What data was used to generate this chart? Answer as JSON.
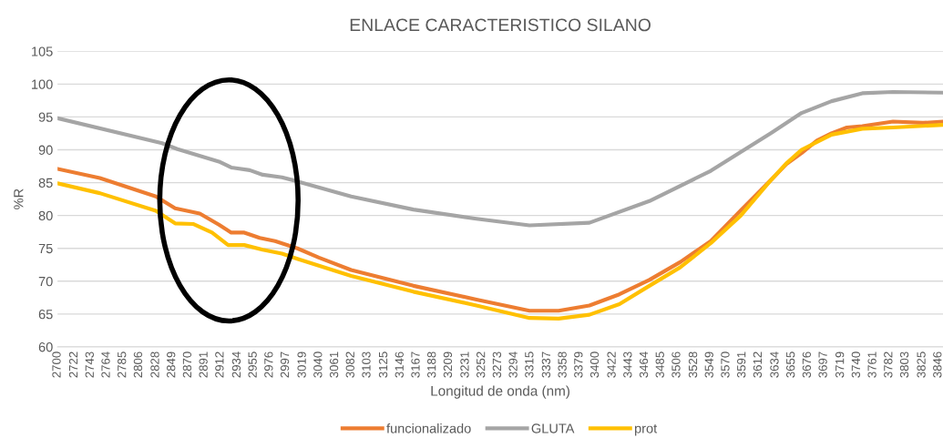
{
  "chart_data": {
    "type": "line",
    "title": "ENLACE CARACTERISTICO SILANO",
    "xlabel": "Longitud de onda (nm)",
    "ylabel": "%R",
    "xlim": [
      2700,
      3852
    ],
    "xticks": [
      2700,
      2722,
      2743,
      2764,
      2785,
      2806,
      2828,
      2849,
      2870,
      2891,
      2912,
      2934,
      2955,
      2976,
      2997,
      3019,
      3040,
      3061,
      3082,
      3103,
      3125,
      3146,
      3167,
      3188,
      3209,
      3231,
      3252,
      3273,
      3294,
      3315,
      3337,
      3358,
      3379,
      3400,
      3422,
      3443,
      3464,
      3485,
      3506,
      3528,
      3549,
      3570,
      3591,
      3612,
      3634,
      3655,
      3676,
      3697,
      3719,
      3740,
      3761,
      3782,
      3803,
      3825,
      3846
    ],
    "ylim": [
      60,
      105
    ],
    "yticks": [
      60,
      65,
      70,
      75,
      80,
      85,
      90,
      95,
      100,
      105
    ],
    "grid": "y",
    "legend": "bottom",
    "marker": "none",
    "line_style": "solid",
    "series": [
      {
        "name": "funcionalizado",
        "color": "#ed7d31",
        "x": [
          2700,
          2755,
          2828,
          2853,
          2885,
          2910,
          2926,
          2943,
          2963,
          2983,
          3012,
          3040,
          3082,
          3163,
          3245,
          3314,
          3352,
          3392,
          3431,
          3470,
          3510,
          3550,
          3589,
          3629,
          3648,
          3668,
          3688,
          3707,
          3727,
          3747,
          3787,
          3826,
          3852
        ],
        "values": [
          87.1,
          85.7,
          82.9,
          81.1,
          80.3,
          78.6,
          77.4,
          77.4,
          76.6,
          76.1,
          75.0,
          73.6,
          71.7,
          69.3,
          67.2,
          65.5,
          65.5,
          66.3,
          68.0,
          70.2,
          72.9,
          76.1,
          80.8,
          85.5,
          87.8,
          89.5,
          91.4,
          92.5,
          93.4,
          93.6,
          94.3,
          94.1,
          94.3
        ]
      },
      {
        "name": "GLUTA",
        "color": "#a5a5a5",
        "x": [
          2700,
          2836,
          2856,
          2910,
          2926,
          2950,
          2967,
          2992,
          3012,
          3082,
          3163,
          3245,
          3314,
          3392,
          3470,
          3550,
          3629,
          3668,
          3707,
          3747,
          3787,
          3852
        ],
        "values": [
          94.8,
          91.0,
          90.1,
          88.2,
          87.3,
          86.9,
          86.2,
          85.8,
          85.2,
          82.9,
          80.9,
          79.5,
          78.5,
          78.9,
          82.2,
          86.8,
          92.6,
          95.6,
          97.4,
          98.6,
          98.8,
          98.7
        ]
      },
      {
        "name": "prot",
        "color": "#ffc000",
        "x": [
          2700,
          2755,
          2828,
          2853,
          2877,
          2901,
          2922,
          2943,
          2967,
          2992,
          3012,
          3082,
          3163,
          3245,
          3314,
          3352,
          3392,
          3431,
          3470,
          3510,
          3550,
          3589,
          3629,
          3648,
          3668,
          3707,
          3747,
          3787,
          3852
        ],
        "values": [
          84.9,
          83.4,
          80.7,
          78.8,
          78.7,
          77.4,
          75.5,
          75.5,
          74.8,
          74.2,
          73.4,
          70.8,
          68.4,
          66.3,
          64.4,
          64.3,
          64.9,
          66.5,
          69.3,
          72.1,
          75.8,
          80.0,
          85.5,
          87.9,
          90.0,
          92.3,
          93.2,
          93.4,
          93.8
        ]
      }
    ]
  }
}
